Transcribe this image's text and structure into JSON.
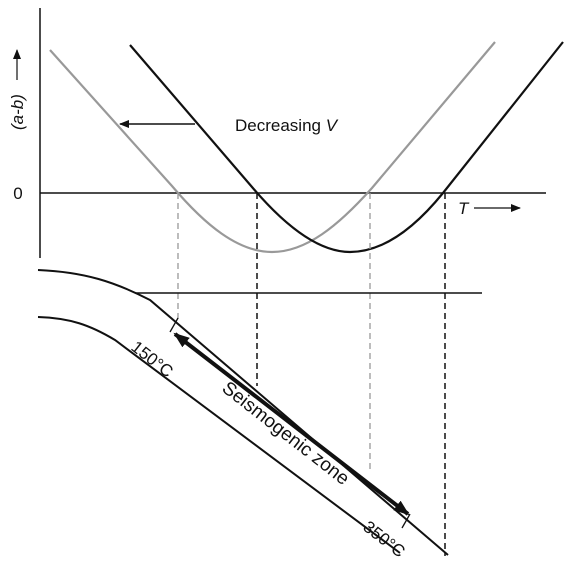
{
  "axis": {
    "y_label": "(a-b)",
    "zero_label": "0",
    "x_label": "T"
  },
  "annotation": {
    "text": "Decreasing",
    "variable": "V"
  },
  "zone": {
    "label": "Seismogenic zone",
    "upper_temp": "150°C",
    "lower_temp": "350°C"
  }
}
